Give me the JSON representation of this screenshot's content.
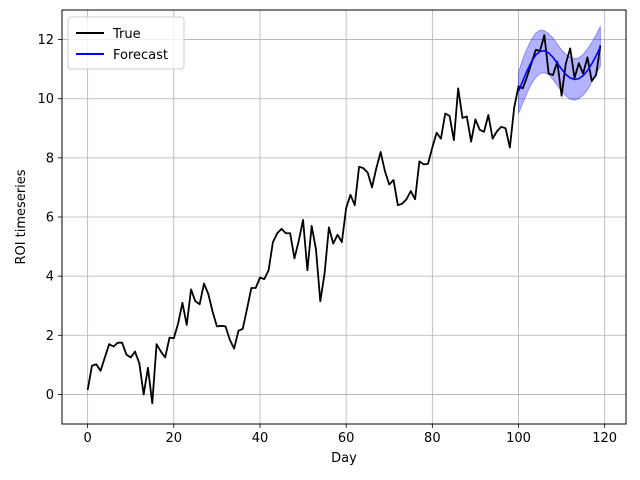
{
  "chart_data": {
    "type": "line",
    "xlabel": "Day",
    "ylabel": "ROI timeseries",
    "xlim": [
      -5.95,
      124.95
    ],
    "ylim": [
      -1.0,
      13.0
    ],
    "xticks": [
      0,
      20,
      40,
      60,
      80,
      100,
      120
    ],
    "yticks": [
      0,
      2,
      4,
      6,
      8,
      10,
      12
    ],
    "grid": true,
    "legend_position": "top-left",
    "series": [
      {
        "name": "True",
        "color": "#000000",
        "x": [
          0,
          1,
          2,
          3,
          4,
          5,
          6,
          7,
          8,
          9,
          10,
          11,
          12,
          13,
          14,
          15,
          16,
          17,
          18,
          19,
          20,
          21,
          22,
          23,
          24,
          25,
          26,
          27,
          28,
          29,
          30,
          31,
          32,
          33,
          34,
          35,
          36,
          37,
          38,
          39,
          40,
          41,
          42,
          43,
          44,
          45,
          46,
          47,
          48,
          49,
          50,
          51,
          52,
          53,
          54,
          55,
          56,
          57,
          58,
          59,
          60,
          61,
          62,
          63,
          64,
          65,
          66,
          67,
          68,
          69,
          70,
          71,
          72,
          73,
          74,
          75,
          76,
          77,
          78,
          79,
          80,
          81,
          82,
          83,
          84,
          85,
          86,
          87,
          88,
          89,
          90,
          91,
          92,
          93,
          94,
          95,
          96,
          97,
          98,
          99,
          100,
          101,
          102,
          103,
          104,
          105,
          106,
          107,
          108,
          109,
          110,
          111,
          112,
          113,
          114,
          115,
          116,
          117,
          118,
          119
        ],
        "values": [
          0.15,
          0.97,
          1.02,
          0.8,
          1.25,
          1.7,
          1.62,
          1.75,
          1.75,
          1.35,
          1.25,
          1.45,
          1.05,
          0.0,
          0.9,
          -0.3,
          1.7,
          1.45,
          1.25,
          1.92,
          1.9,
          2.4,
          3.1,
          2.35,
          3.55,
          3.15,
          3.05,
          3.75,
          3.4,
          2.8,
          2.3,
          2.32,
          2.3,
          1.85,
          1.55,
          2.15,
          2.22,
          2.9,
          3.6,
          3.6,
          3.95,
          3.9,
          4.2,
          5.15,
          5.45,
          5.6,
          5.45,
          5.45,
          4.6,
          5.2,
          5.9,
          4.2,
          5.7,
          4.9,
          3.15,
          4.1,
          5.65,
          5.1,
          5.4,
          5.15,
          6.3,
          6.75,
          6.4,
          7.7,
          7.65,
          7.5,
          7.0,
          7.65,
          8.2,
          7.55,
          7.1,
          7.25,
          6.4,
          6.45,
          6.6,
          6.88,
          6.6,
          7.88,
          7.78,
          7.8,
          8.35,
          8.85,
          8.65,
          9.5,
          9.42,
          8.6,
          10.35,
          9.35,
          9.4,
          8.55,
          9.3,
          8.95,
          8.88,
          9.45,
          8.65,
          8.9,
          9.05,
          9.0,
          8.35,
          9.7,
          10.42,
          10.35,
          10.75,
          11.2,
          11.65,
          11.62,
          12.15,
          10.85,
          10.8,
          11.25,
          10.1,
          11.2,
          11.7,
          10.7,
          11.2,
          10.85,
          11.4,
          10.6,
          10.8,
          11.8
        ]
      },
      {
        "name": "Forecast",
        "color": "#0000ff",
        "x": [
          100,
          101,
          102,
          103,
          104,
          105,
          106,
          107,
          108,
          109,
          110,
          111,
          112,
          113,
          114,
          115,
          116,
          117,
          118,
          119
        ],
        "values": [
          10.25,
          10.6,
          10.95,
          11.25,
          11.48,
          11.6,
          11.62,
          11.55,
          11.4,
          11.2,
          11.0,
          10.82,
          10.7,
          10.65,
          10.68,
          10.78,
          10.95,
          11.18,
          11.45,
          11.75
        ],
        "lower": [
          9.5,
          9.85,
          10.2,
          10.5,
          10.72,
          10.85,
          10.88,
          10.82,
          10.65,
          10.45,
          10.25,
          10.1,
          9.98,
          9.95,
          10.0,
          10.12,
          10.3,
          10.55,
          10.85,
          11.1
        ],
        "upper": [
          10.9,
          11.35,
          11.7,
          12.0,
          12.22,
          12.32,
          12.3,
          12.2,
          12.05,
          11.85,
          11.65,
          11.5,
          11.4,
          11.35,
          11.38,
          11.5,
          11.68,
          11.9,
          12.15,
          12.45
        ],
        "band_color": "#0000ff"
      }
    ]
  }
}
